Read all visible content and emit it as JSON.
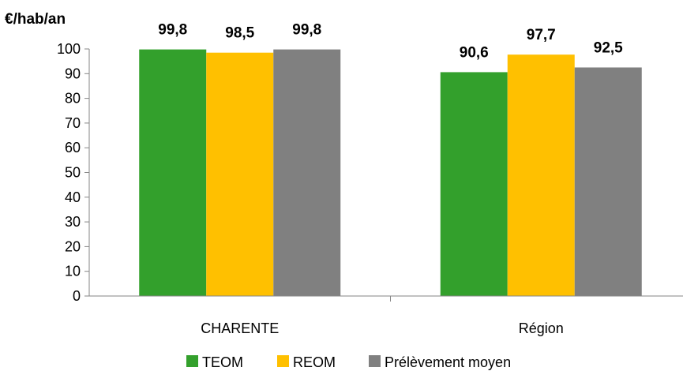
{
  "chart_data": {
    "type": "bar",
    "ylabel": "€/hab/an",
    "ylim": [
      0,
      100
    ],
    "yticks": [
      0,
      10,
      20,
      30,
      40,
      50,
      60,
      70,
      80,
      90,
      100
    ],
    "categories": [
      "CHARENTE",
      "Région"
    ],
    "series": [
      {
        "name": "TEOM",
        "color": "#33A02C",
        "values": [
          99.8,
          90.6
        ],
        "labels": [
          "99,8",
          "90,6"
        ]
      },
      {
        "name": "REOM",
        "color": "#FFC000",
        "values": [
          98.5,
          97.7
        ],
        "labels": [
          "98,5",
          "97,7"
        ]
      },
      {
        "name": "Prélèvement moyen",
        "color": "#808080",
        "values": [
          99.8,
          92.5
        ],
        "labels": [
          "99,8",
          "92,5"
        ]
      }
    ],
    "legend": "bottom",
    "grid": false
  }
}
